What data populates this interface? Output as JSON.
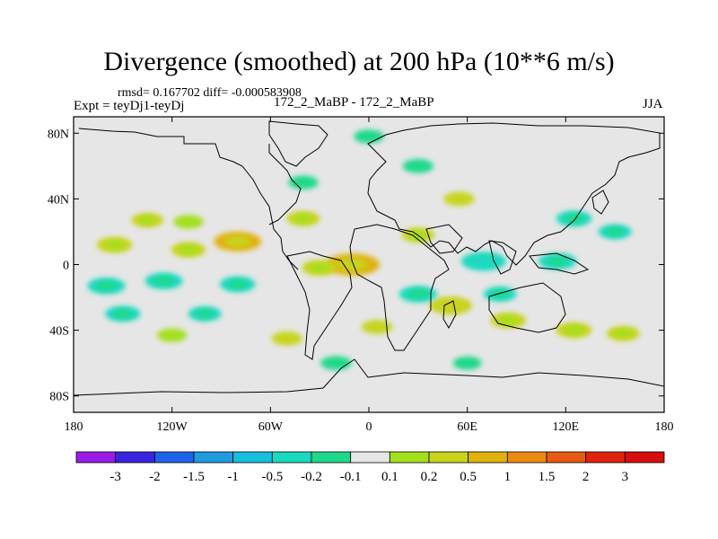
{
  "chart_data": {
    "type": "heatmap",
    "title": "Divergence (smoothed) at 200 hPa (10**6 m/s)",
    "stats_line": "rmsd= 0.167702 diff= -0.000583908",
    "experiment": "Expt = teyDj1-teyDj",
    "runs": "172_2_MaBP - 172_2_MaBP",
    "season": "JJA",
    "x_range": [
      -180,
      180
    ],
    "y_range": [
      -90,
      90
    ],
    "x_ticks": [
      {
        "value": -180,
        "label": "180"
      },
      {
        "value": -120,
        "label": "120W"
      },
      {
        "value": -60,
        "label": "60W"
      },
      {
        "value": 0,
        "label": "0"
      },
      {
        "value": 60,
        "label": "60E"
      },
      {
        "value": 120,
        "label": "120E"
      },
      {
        "value": 180,
        "label": "180"
      }
    ],
    "y_ticks": [
      {
        "value": 80,
        "label": "80N"
      },
      {
        "value": 40,
        "label": "40N"
      },
      {
        "value": 0,
        "label": "0"
      },
      {
        "value": -40,
        "label": "40S"
      },
      {
        "value": -80,
        "label": "80S"
      }
    ],
    "colorbar": {
      "labels": [
        "-3",
        "-2",
        "-1.5",
        "-1",
        "-0.5",
        "-0.2",
        "-0.1",
        "0.1",
        "0.2",
        "0.5",
        "1",
        "1.5",
        "2",
        "3"
      ],
      "colors": [
        "#9b1be6",
        "#3a24e0",
        "#1e64e8",
        "#1f9be0",
        "#18bede",
        "#1ad9c0",
        "#1fd98a",
        "#e6e6e6",
        "#a3e01c",
        "#c8d41a",
        "#e0b20c",
        "#ea8a12",
        "#e65a12",
        "#e0240c",
        "#d80d0d"
      ]
    },
    "fields": [
      {
        "lon": -135,
        "lat": 27,
        "value": 0.22
      },
      {
        "lon": -110,
        "lat": 26,
        "value": 0.18
      },
      {
        "lon": -80,
        "lat": 14,
        "value": 0.55
      },
      {
        "lon": -155,
        "lat": 12,
        "value": 0.3
      },
      {
        "lon": -110,
        "lat": 9,
        "value": 0.28
      },
      {
        "lon": -40,
        "lat": 28,
        "value": 0.25
      },
      {
        "lon": -10,
        "lat": 0,
        "value": 0.7
      },
      {
        "lon": -30,
        "lat": -2,
        "value": 0.3
      },
      {
        "lon": 30,
        "lat": 18,
        "value": 0.25
      },
      {
        "lon": 50,
        "lat": -25,
        "value": 0.45
      },
      {
        "lon": 85,
        "lat": -34,
        "value": 0.3
      },
      {
        "lon": 125,
        "lat": -40,
        "value": 0.3
      },
      {
        "lon": 155,
        "lat": -42,
        "value": 0.25
      },
      {
        "lon": 55,
        "lat": 40,
        "value": 0.2
      },
      {
        "lon": -50,
        "lat": -45,
        "value": 0.2
      },
      {
        "lon": -120,
        "lat": -43,
        "value": 0.18
      },
      {
        "lon": 5,
        "lat": -38,
        "value": 0.2
      },
      {
        "lon": -160,
        "lat": -13,
        "value": -0.35
      },
      {
        "lon": -125,
        "lat": -10,
        "value": -0.35
      },
      {
        "lon": -80,
        "lat": -12,
        "value": -0.3
      },
      {
        "lon": -150,
        "lat": -30,
        "value": -0.3
      },
      {
        "lon": -100,
        "lat": -30,
        "value": -0.25
      },
      {
        "lon": 70,
        "lat": 2,
        "value": -0.5
      },
      {
        "lon": 115,
        "lat": 2,
        "value": -0.35
      },
      {
        "lon": 125,
        "lat": 28,
        "value": -0.3
      },
      {
        "lon": 150,
        "lat": 20,
        "value": -0.25
      },
      {
        "lon": 30,
        "lat": -18,
        "value": -0.35
      },
      {
        "lon": 80,
        "lat": -18,
        "value": -0.25
      },
      {
        "lon": 30,
        "lat": 60,
        "value": -0.2
      },
      {
        "lon": -40,
        "lat": 50,
        "value": -0.18
      },
      {
        "lon": 0,
        "lat": 78,
        "value": -0.18
      },
      {
        "lon": -20,
        "lat": -60,
        "value": -0.2
      },
      {
        "lon": 60,
        "lat": -60,
        "value": -0.15
      }
    ]
  }
}
